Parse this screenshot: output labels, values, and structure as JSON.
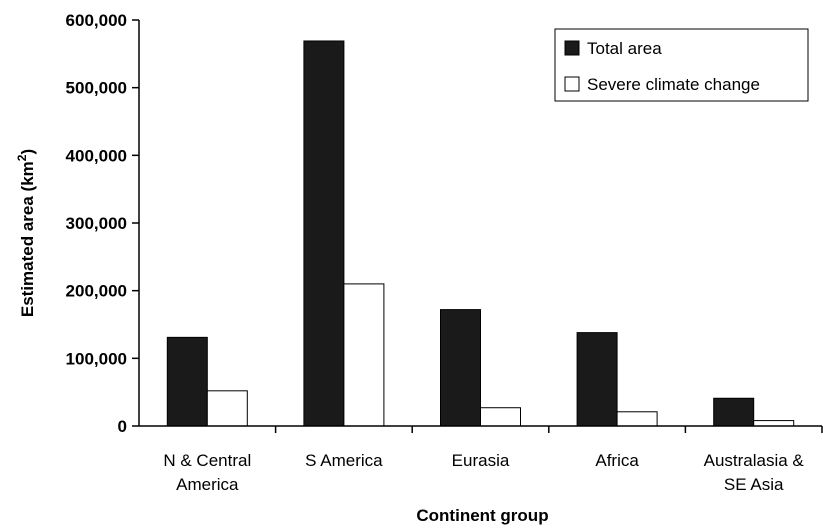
{
  "chart_data": {
    "type": "bar",
    "categories": [
      [
        "N & Central",
        "America"
      ],
      [
        "S America"
      ],
      [
        "Eurasia"
      ],
      [
        "Africa"
      ],
      [
        "Australasia &",
        "SE Asia"
      ]
    ],
    "series": [
      {
        "name": "Total area",
        "values": [
          131000,
          569000,
          172000,
          138000,
          41000
        ],
        "color": "#1a1a1a"
      },
      {
        "name": "Severe climate change",
        "values": [
          52000,
          210000,
          27000,
          21000,
          8000
        ],
        "color": "#ffffff"
      }
    ],
    "xlabel": "Continent group",
    "ylabel": "Estimated area (km",
    "ylabel_superscript": "2",
    "ylabel_suffix": ")",
    "ylim": [
      0,
      600000
    ],
    "yticks": [
      {
        "value": 0,
        "label": "0"
      },
      {
        "value": 100000,
        "label": "100,000"
      },
      {
        "value": 200000,
        "label": "200,000"
      },
      {
        "value": 300000,
        "label": "300,000"
      },
      {
        "value": 400000,
        "label": "400,000"
      },
      {
        "value": 500000,
        "label": "500,000"
      },
      {
        "value": 600000,
        "label": "600,000"
      }
    ],
    "grid": false,
    "legend_position": "top-right"
  }
}
